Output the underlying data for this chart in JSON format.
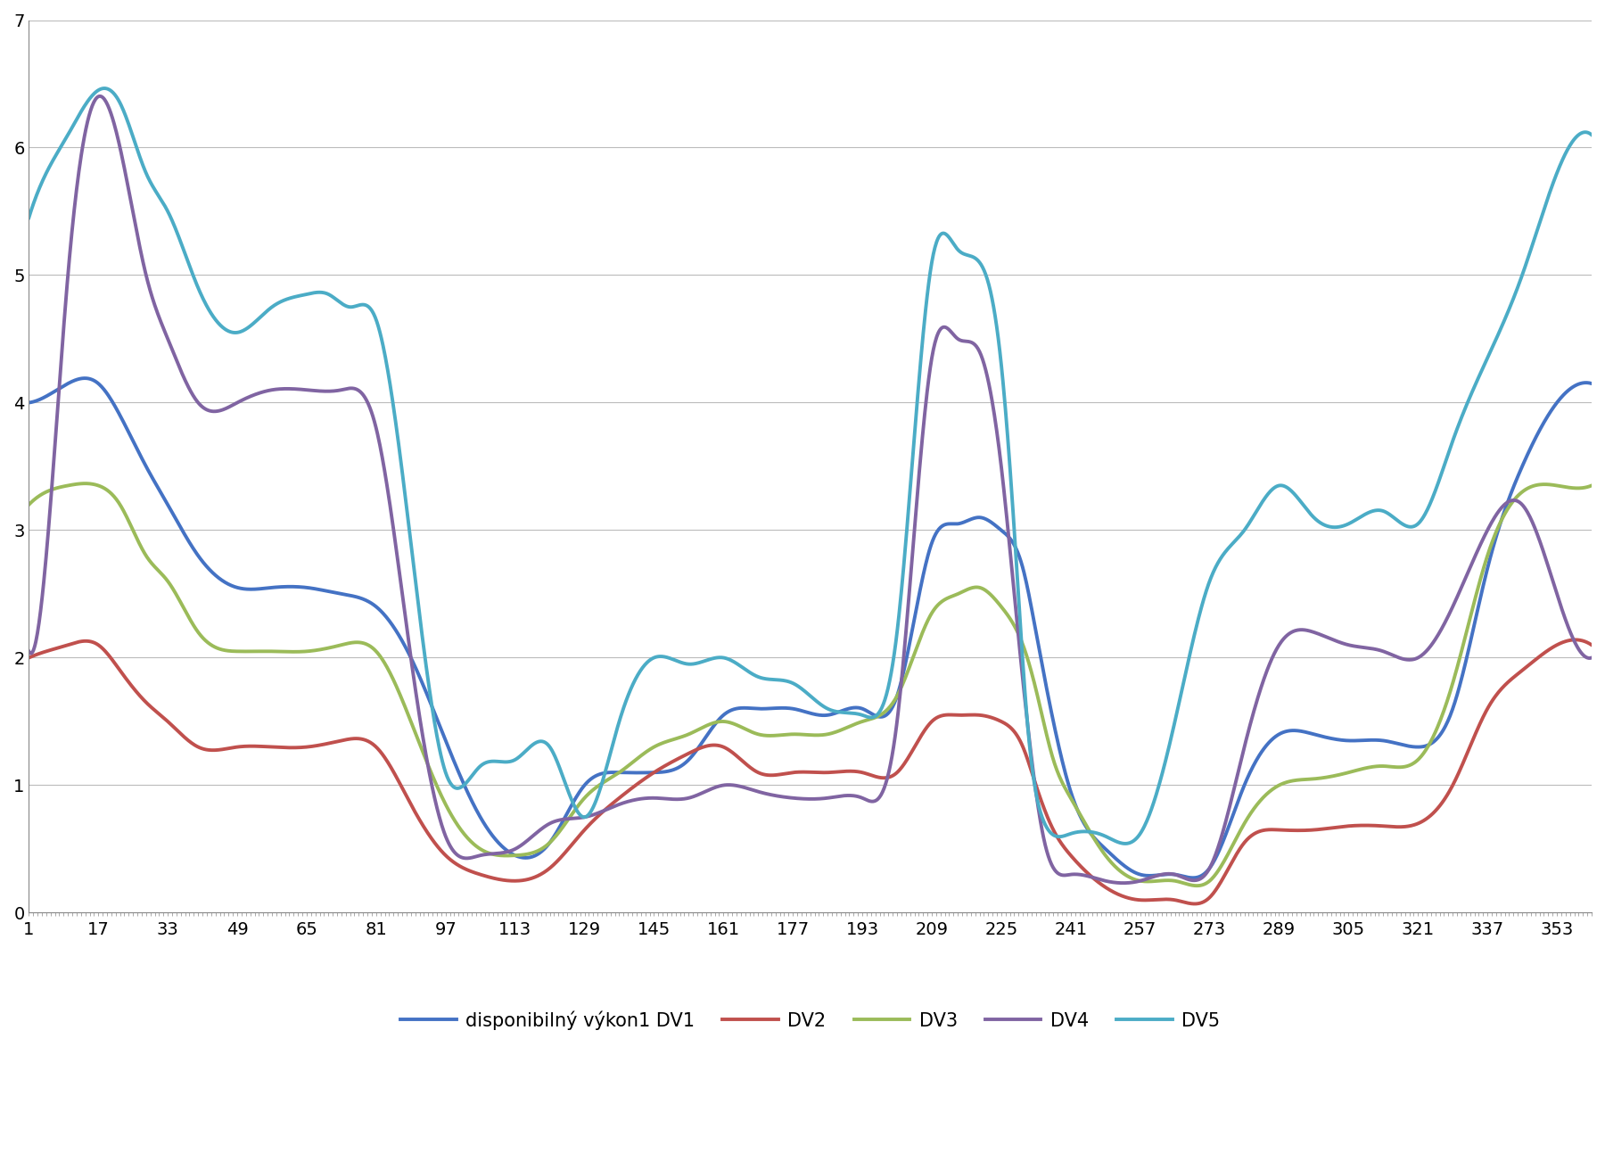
{
  "title": "",
  "x_ticks": [
    1,
    17,
    33,
    49,
    65,
    81,
    97,
    113,
    129,
    145,
    161,
    177,
    193,
    209,
    225,
    241,
    257,
    273,
    289,
    305,
    321,
    337,
    353
  ],
  "ylim": [
    0,
    7
  ],
  "yticks": [
    0,
    1,
    2,
    3,
    4,
    5,
    6,
    7
  ],
  "series": {
    "DV1": {
      "color": "#4472C4",
      "label": "disponibilný výkon1 DV1",
      "knots_x": [
        1,
        5,
        10,
        17,
        22,
        28,
        33,
        40,
        49,
        57,
        65,
        73,
        81,
        89,
        97,
        105,
        113,
        121,
        129,
        137,
        145,
        153,
        161,
        169,
        177,
        185,
        193,
        201,
        209,
        215,
        220,
        225,
        230,
        233,
        237,
        241,
        249,
        257,
        265,
        273,
        281,
        289,
        297,
        305,
        313,
        321,
        329,
        337,
        345,
        353,
        361
      ],
      "knots_y": [
        4.0,
        4.05,
        4.15,
        4.15,
        3.9,
        3.5,
        3.2,
        2.8,
        2.55,
        2.55,
        2.55,
        2.5,
        2.4,
        2.0,
        1.35,
        0.75,
        0.45,
        0.55,
        1.0,
        1.1,
        1.1,
        1.2,
        1.55,
        1.6,
        1.6,
        1.55,
        1.6,
        1.7,
        2.9,
        3.05,
        3.1,
        3.0,
        2.7,
        2.2,
        1.5,
        0.95,
        0.5,
        0.3,
        0.3,
        0.35,
        1.0,
        1.4,
        1.4,
        1.35,
        1.35,
        1.3,
        1.6,
        2.7,
        3.5,
        4.0,
        4.15
      ]
    },
    "DV2": {
      "color": "#C0504D",
      "label": "DV2",
      "knots_x": [
        1,
        5,
        10,
        17,
        22,
        28,
        33,
        40,
        49,
        57,
        65,
        73,
        81,
        89,
        97,
        105,
        113,
        121,
        129,
        137,
        145,
        153,
        161,
        169,
        177,
        185,
        193,
        201,
        209,
        215,
        220,
        225,
        230,
        233,
        237,
        241,
        249,
        257,
        265,
        273,
        281,
        289,
        297,
        305,
        313,
        321,
        329,
        337,
        345,
        353,
        361
      ],
      "knots_y": [
        2.0,
        2.05,
        2.1,
        2.1,
        1.9,
        1.65,
        1.5,
        1.3,
        1.3,
        1.3,
        1.3,
        1.35,
        1.3,
        0.85,
        0.45,
        0.3,
        0.25,
        0.35,
        0.65,
        0.9,
        1.1,
        1.25,
        1.3,
        1.1,
        1.1,
        1.1,
        1.1,
        1.1,
        1.5,
        1.55,
        1.55,
        1.5,
        1.3,
        1.0,
        0.65,
        0.45,
        0.2,
        0.1,
        0.1,
        0.12,
        0.55,
        0.65,
        0.65,
        0.68,
        0.68,
        0.7,
        1.0,
        1.6,
        1.9,
        2.1,
        2.1
      ]
    },
    "DV3": {
      "color": "#9BBB59",
      "label": "DV3",
      "knots_x": [
        1,
        5,
        10,
        17,
        22,
        28,
        33,
        40,
        49,
        57,
        65,
        73,
        81,
        89,
        97,
        105,
        113,
        121,
        129,
        137,
        145,
        153,
        161,
        169,
        177,
        185,
        193,
        201,
        209,
        215,
        220,
        225,
        230,
        233,
        237,
        241,
        249,
        257,
        265,
        273,
        281,
        289,
        297,
        305,
        313,
        321,
        329,
        337,
        345,
        353,
        361
      ],
      "knots_y": [
        3.2,
        3.3,
        3.35,
        3.35,
        3.2,
        2.8,
        2.6,
        2.2,
        2.05,
        2.05,
        2.05,
        2.1,
        2.05,
        1.5,
        0.85,
        0.5,
        0.45,
        0.55,
        0.9,
        1.1,
        1.3,
        1.4,
        1.5,
        1.4,
        1.4,
        1.4,
        1.5,
        1.7,
        2.35,
        2.5,
        2.55,
        2.4,
        2.1,
        1.75,
        1.2,
        0.9,
        0.45,
        0.25,
        0.25,
        0.25,
        0.7,
        1.0,
        1.05,
        1.1,
        1.15,
        1.2,
        1.8,
        2.8,
        3.3,
        3.35,
        3.35
      ]
    },
    "DV4": {
      "color": "#8064A2",
      "label": "DV4",
      "knots_x": [
        1,
        5,
        10,
        17,
        22,
        28,
        33,
        40,
        49,
        57,
        65,
        73,
        81,
        89,
        97,
        105,
        113,
        121,
        129,
        137,
        145,
        153,
        161,
        169,
        177,
        185,
        193,
        201,
        209,
        215,
        220,
        225,
        228,
        231,
        235,
        241,
        249,
        257,
        265,
        273,
        281,
        289,
        297,
        305,
        313,
        321,
        329,
        337,
        345,
        353,
        361
      ],
      "knots_y": [
        2.05,
        2.8,
        5.0,
        6.4,
        6.0,
        5.0,
        4.5,
        4.0,
        4.0,
        4.1,
        4.1,
        4.1,
        3.8,
        2.0,
        0.6,
        0.45,
        0.5,
        0.7,
        0.75,
        0.85,
        0.9,
        0.9,
        1.0,
        0.95,
        0.9,
        0.9,
        0.9,
        1.5,
        4.35,
        4.5,
        4.4,
        3.5,
        2.5,
        1.5,
        0.55,
        0.3,
        0.25,
        0.25,
        0.3,
        0.35,
        1.3,
        2.1,
        2.2,
        2.1,
        2.05,
        2.0,
        2.4,
        3.0,
        3.2,
        2.5,
        2.0
      ]
    },
    "DV5": {
      "color": "#4BACC6",
      "label": "DV5",
      "knots_x": [
        1,
        5,
        10,
        17,
        22,
        28,
        33,
        40,
        49,
        57,
        65,
        70,
        75,
        81,
        89,
        97,
        105,
        113,
        121,
        129,
        137,
        145,
        153,
        161,
        169,
        177,
        185,
        193,
        201,
        209,
        215,
        220,
        225,
        228,
        231,
        235,
        241,
        249,
        257,
        265,
        273,
        281,
        289,
        297,
        305,
        313,
        321,
        329,
        337,
        345,
        353,
        361
      ],
      "knots_y": [
        5.45,
        5.8,
        6.1,
        6.45,
        6.35,
        5.8,
        5.5,
        4.9,
        4.55,
        4.75,
        4.85,
        4.85,
        4.75,
        4.65,
        2.9,
        1.1,
        1.15,
        1.2,
        1.3,
        0.75,
        1.5,
        2.0,
        1.95,
        2.0,
        1.85,
        1.8,
        1.6,
        1.55,
        2.2,
        5.1,
        5.2,
        5.1,
        4.3,
        3.0,
        1.5,
        0.7,
        0.62,
        0.6,
        0.62,
        1.5,
        2.6,
        3.0,
        3.35,
        3.1,
        3.05,
        3.15,
        3.05,
        3.7,
        4.35,
        5.0,
        5.8,
        6.1
      ]
    }
  },
  "legend_labels": [
    "disponibilný výkon1 DV1",
    "DV2",
    "DV3",
    "DV4",
    "DV5"
  ],
  "line_width": 2.8,
  "background_color": "#FFFFFF",
  "grid_color": "#BBBBBB",
  "axis_line_color": "#888888"
}
